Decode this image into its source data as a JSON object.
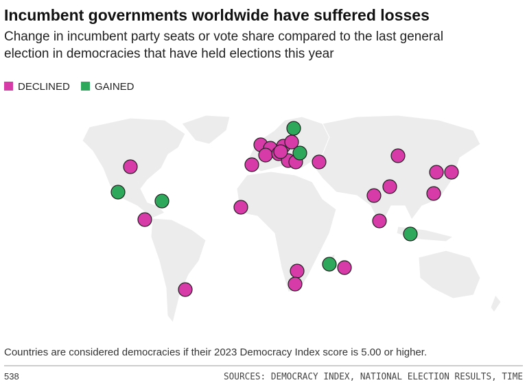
{
  "header": {
    "title": "Incumbent governments worldwide have suffered losses",
    "subtitle": [
      "Change in incumbent party seats or vote share compared to the last general",
      "election in democracies that have held elections this year"
    ]
  },
  "legend": [
    {
      "label": "DECLINED",
      "color": "#d63ba8"
    },
    {
      "label": "GAINED",
      "color": "#2ea85a"
    }
  ],
  "footer": {
    "note": "Countries are considered democracies if their 2023 Democracy Index score is 5.00 or higher.",
    "page": "538",
    "sources": "SOURCES: DEMOCRACY INDEX, NATIONAL ELECTION RESULTS, TIME"
  }
}
